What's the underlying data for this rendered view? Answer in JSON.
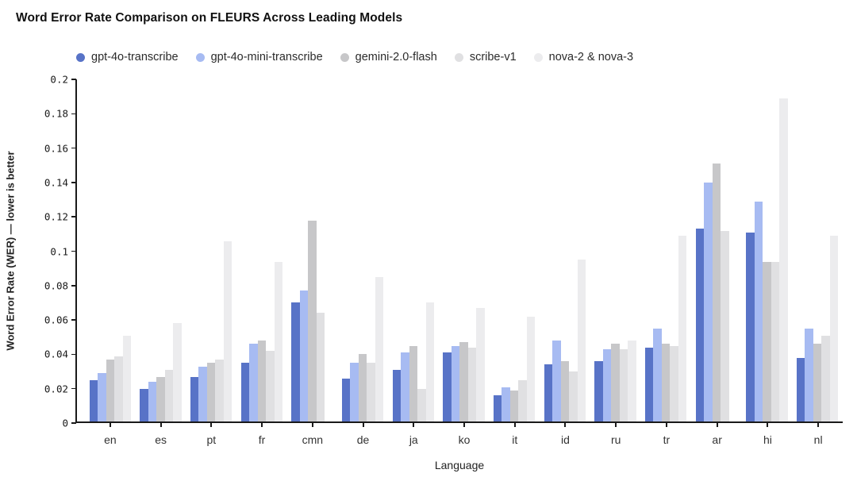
{
  "page": {
    "background": "#ffffff"
  },
  "colors": {
    "axis": "#1a1a1a",
    "title_text": "#111111",
    "ytick_text": "#1a1a1a",
    "xtick_text": "#333333",
    "legend_text": "#2b2b2b"
  },
  "chart_data": {
    "type": "bar",
    "title": "Word Error Rate Comparison on FLEURS Across Leading Models",
    "xlabel": "Language",
    "ylabel": "Word Error Rate (WER) — lower is better",
    "ylim": [
      0,
      0.2
    ],
    "ytick_labels": [
      "0",
      "0.02",
      "0.04",
      "0.06",
      "0.08",
      "0.1",
      "0.12",
      "0.14",
      "0.16",
      "0.18",
      "0.2"
    ],
    "grid": false,
    "legend_position": "top",
    "categories": [
      "en",
      "es",
      "pt",
      "fr",
      "cmn",
      "de",
      "ja",
      "ko",
      "it",
      "id",
      "ru",
      "tr",
      "ar",
      "hi",
      "nl"
    ],
    "series": [
      {
        "name": "gpt-4o-transcribe",
        "color": "#5873c7",
        "values": [
          0.025,
          0.02,
          0.027,
          0.035,
          0.07,
          0.026,
          0.031,
          0.041,
          0.016,
          0.034,
          0.036,
          0.044,
          0.113,
          0.111,
          0.038
        ]
      },
      {
        "name": "gpt-4o-mini-transcribe",
        "color": "#a7bbf2",
        "values": [
          0.029,
          0.024,
          0.033,
          0.046,
          0.077,
          0.035,
          0.041,
          0.045,
          0.021,
          0.048,
          0.043,
          0.055,
          0.14,
          0.129,
          0.055
        ]
      },
      {
        "name": "gemini-2.0-flash",
        "color": "#c7c7c9",
        "values": [
          0.037,
          0.027,
          0.035,
          0.048,
          0.118,
          0.04,
          0.045,
          0.047,
          0.019,
          0.036,
          0.046,
          0.046,
          0.151,
          0.094,
          0.046
        ]
      },
      {
        "name": "scribe-v1",
        "color": "#e0e0e2",
        "values": [
          0.039,
          0.031,
          0.037,
          0.042,
          0.064,
          0.035,
          0.02,
          0.044,
          0.025,
          0.03,
          0.043,
          0.045,
          0.112,
          0.094,
          0.051
        ]
      },
      {
        "name": "nova-2 & nova-3",
        "color": "#ececee",
        "values": [
          0.051,
          0.058,
          0.106,
          0.094,
          null,
          0.085,
          0.07,
          0.067,
          0.062,
          0.095,
          0.048,
          0.109,
          null,
          0.189,
          0.109
        ]
      }
    ]
  }
}
